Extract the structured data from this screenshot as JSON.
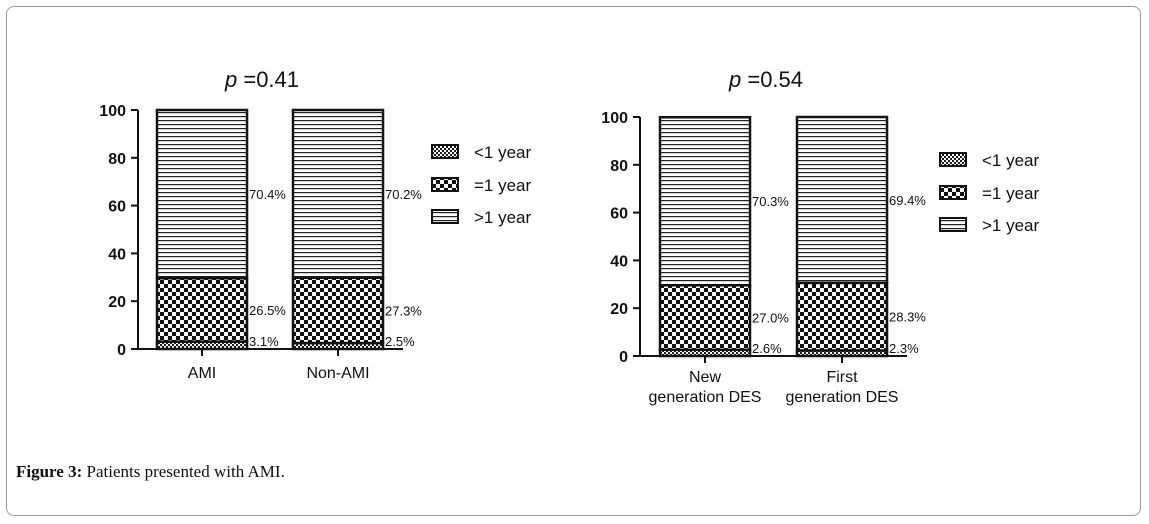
{
  "figure": {
    "caption_label": "Figure 3:",
    "caption_text": "Patients presented with AMI."
  },
  "legend_items": [
    "<1 year",
    "=1 year",
    ">1 year"
  ],
  "chart_data": [
    {
      "type": "bar",
      "stacked": true,
      "title_p": "p",
      "title_rest": " =0.41",
      "categories": [
        "AMI",
        "Non-AMI"
      ],
      "series": [
        {
          "name": "<1 year",
          "values": [
            3.1,
            2.5
          ],
          "labels": [
            "3.1%",
            "2.5%"
          ]
        },
        {
          "name": "=1 year",
          "values": [
            26.5,
            27.3
          ],
          "labels": [
            "26.5%",
            "27.3%"
          ]
        },
        {
          "name": ">1 year",
          "values": [
            70.4,
            70.2
          ],
          "labels": [
            "70.4%",
            "70.2%"
          ]
        }
      ],
      "ylim": [
        0,
        100
      ],
      "yticks": [
        0,
        20,
        40,
        60,
        80,
        100
      ],
      "legend_position": "right",
      "grid": false
    },
    {
      "type": "bar",
      "stacked": true,
      "title_p": "p",
      "title_rest": " =0.54",
      "categories": [
        "New generation DES",
        "First generation DES"
      ],
      "category_lines": [
        [
          "New",
          "generation DES"
        ],
        [
          "First",
          "generation DES"
        ]
      ],
      "series": [
        {
          "name": "<1 year",
          "values": [
            2.6,
            2.3
          ],
          "labels": [
            "2.6%",
            "2.3%"
          ]
        },
        {
          "name": "=1 year",
          "values": [
            27.0,
            28.3
          ],
          "labels": [
            "27.0%",
            "28.3%"
          ]
        },
        {
          "name": ">1 year",
          "values": [
            70.3,
            69.4
          ],
          "labels": [
            "70.3%",
            "69.4%"
          ]
        }
      ],
      "ylim": [
        0,
        100
      ],
      "yticks": [
        0,
        20,
        40,
        60,
        80,
        100
      ],
      "legend_position": "right",
      "grid": false
    }
  ]
}
